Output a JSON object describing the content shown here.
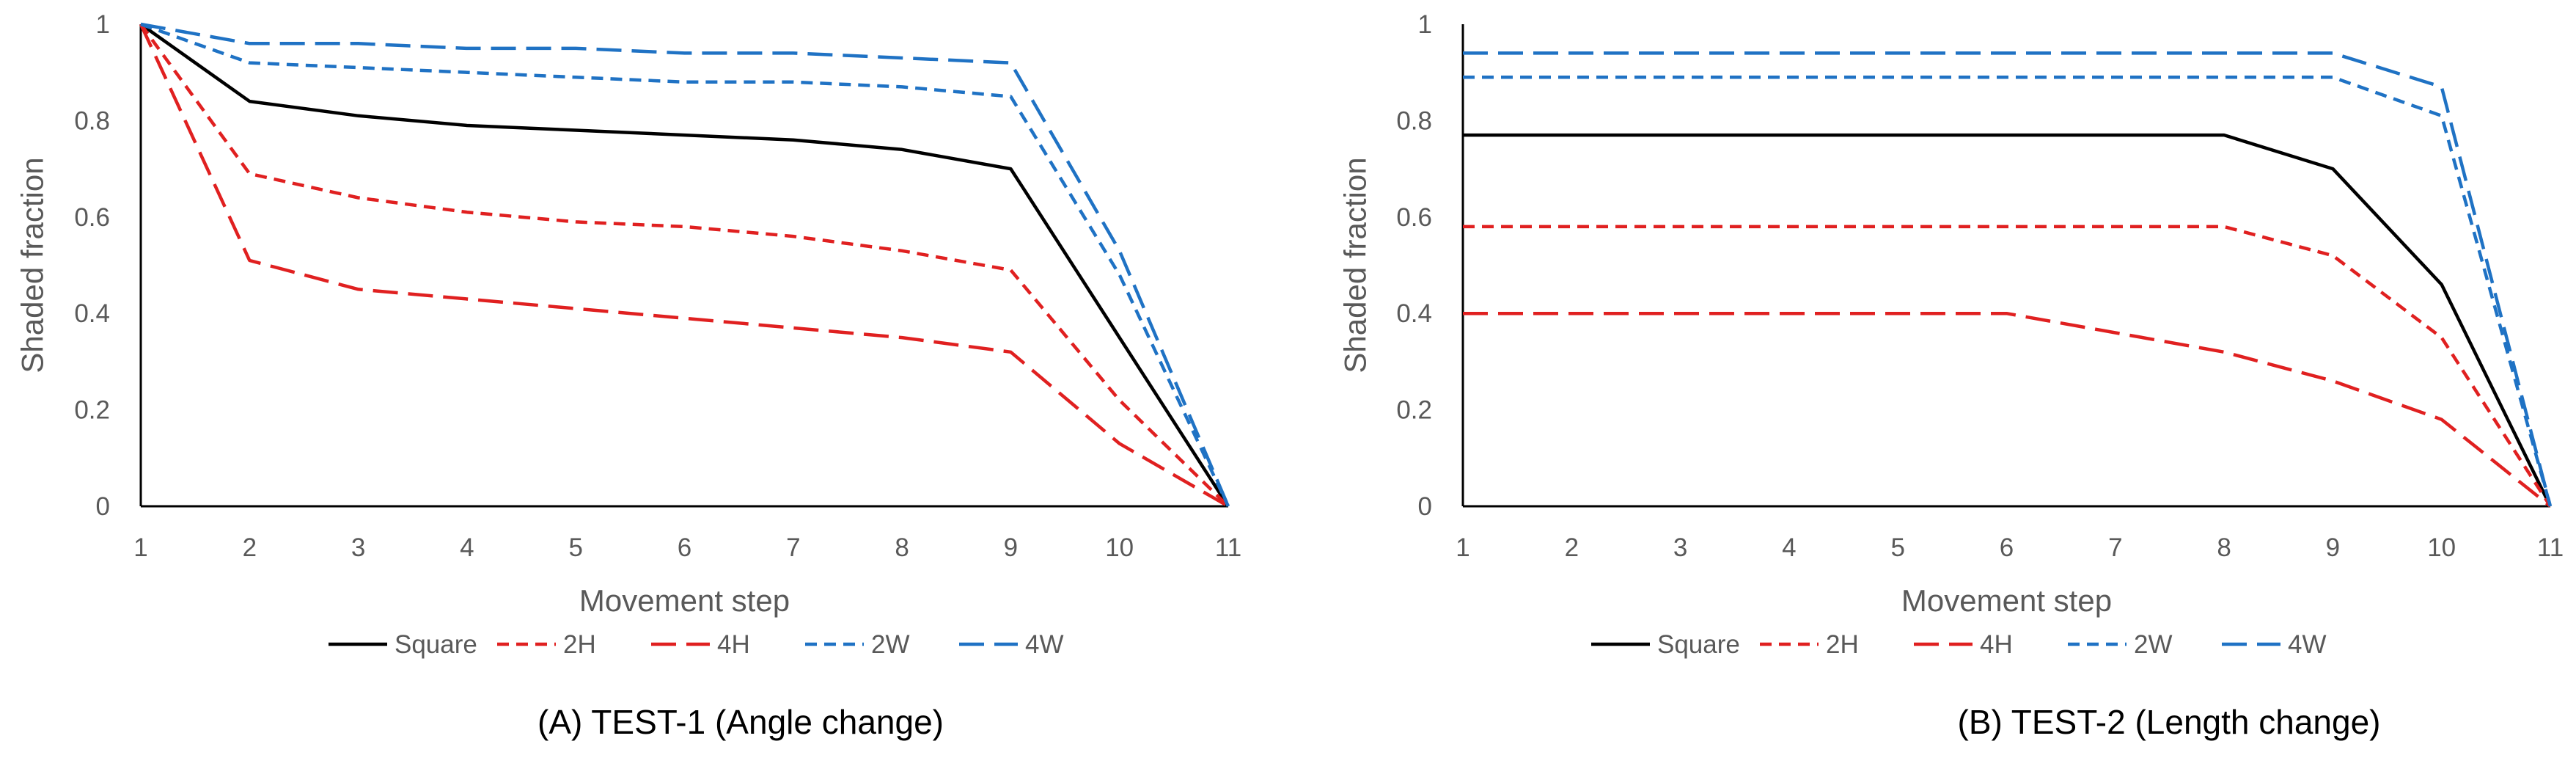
{
  "chart_data": [
    {
      "type": "line",
      "caption": "(A) TEST-1 (Angle change)",
      "xlabel": "Movement step",
      "ylabel": "Shaded fraction",
      "x": [
        1,
        2,
        3,
        4,
        5,
        6,
        7,
        8,
        9,
        10,
        11
      ],
      "x_tick_labels": [
        "1",
        "2",
        "3",
        "4",
        "5",
        "6",
        "7",
        "8",
        "9",
        "10",
        "11"
      ],
      "y_tick_labels": [
        "0",
        "0.2",
        "0.4",
        "0.6",
        "0.8",
        "1"
      ],
      "ylim": [
        0,
        1
      ],
      "grid": false,
      "legend_position": "bottom",
      "series": [
        {
          "name": "Square",
          "color": "#000000",
          "dash": "solid",
          "values": [
            1,
            0.84,
            0.81,
            0.79,
            0.78,
            0.77,
            0.76,
            0.74,
            0.7,
            0.35,
            0
          ]
        },
        {
          "name": "2H",
          "color": "#e02020",
          "dash": "short",
          "values": [
            1,
            0.69,
            0.64,
            0.61,
            0.59,
            0.58,
            0.56,
            0.53,
            0.49,
            0.22,
            0
          ]
        },
        {
          "name": "4H",
          "color": "#e02020",
          "dash": "long",
          "values": [
            1,
            0.51,
            0.45,
            0.43,
            0.41,
            0.39,
            0.37,
            0.35,
            0.32,
            0.13,
            0
          ]
        },
        {
          "name": "2W",
          "color": "#1f72c4",
          "dash": "short",
          "values": [
            1,
            0.92,
            0.91,
            0.9,
            0.89,
            0.88,
            0.88,
            0.87,
            0.85,
            0.48,
            0
          ]
        },
        {
          "name": "4W",
          "color": "#1f72c4",
          "dash": "long",
          "values": [
            1,
            0.96,
            0.96,
            0.95,
            0.95,
            0.94,
            0.94,
            0.93,
            0.92,
            0.53,
            0
          ]
        }
      ]
    },
    {
      "type": "line",
      "caption": "(B) TEST-2 (Length change)",
      "xlabel": "Movement step",
      "ylabel": "Shaded fraction",
      "x": [
        1,
        2,
        3,
        4,
        5,
        6,
        7,
        8,
        9,
        10,
        11
      ],
      "x_tick_labels": [
        "1",
        "2",
        "3",
        "4",
        "5",
        "6",
        "7",
        "8",
        "9",
        "10",
        "11"
      ],
      "y_tick_labels": [
        "0",
        "0.2",
        "0.4",
        "0.6",
        "0.8",
        "1"
      ],
      "ylim": [
        0,
        1
      ],
      "grid": false,
      "legend_position": "bottom",
      "series": [
        {
          "name": "Square",
          "color": "#000000",
          "dash": "solid",
          "values": [
            0.77,
            0.77,
            0.77,
            0.77,
            0.77,
            0.77,
            0.77,
            0.77,
            0.7,
            0.46,
            0
          ]
        },
        {
          "name": "2H",
          "color": "#e02020",
          "dash": "short",
          "values": [
            0.58,
            0.58,
            0.58,
            0.58,
            0.58,
            0.58,
            0.58,
            0.58,
            0.52,
            0.35,
            0
          ]
        },
        {
          "name": "4H",
          "color": "#e02020",
          "dash": "long",
          "values": [
            0.4,
            0.4,
            0.4,
            0.4,
            0.4,
            0.4,
            0.36,
            0.32,
            0.26,
            0.18,
            0
          ]
        },
        {
          "name": "2W",
          "color": "#1f72c4",
          "dash": "short",
          "values": [
            0.89,
            0.89,
            0.89,
            0.89,
            0.89,
            0.89,
            0.89,
            0.89,
            0.89,
            0.81,
            0
          ]
        },
        {
          "name": "4W",
          "color": "#1f72c4",
          "dash": "long",
          "values": [
            0.94,
            0.94,
            0.94,
            0.94,
            0.94,
            0.94,
            0.94,
            0.94,
            0.94,
            0.87,
            0
          ]
        }
      ]
    }
  ]
}
